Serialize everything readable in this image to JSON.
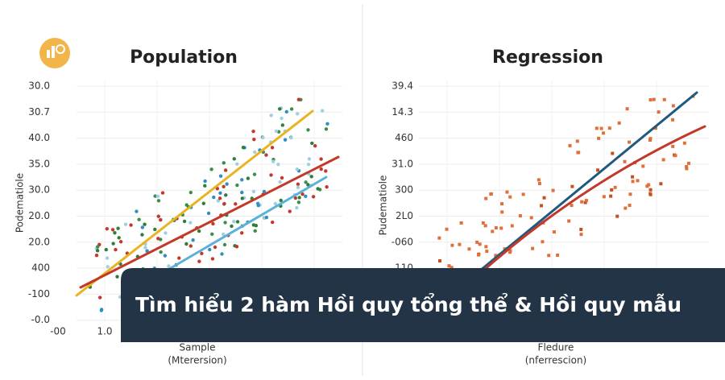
{
  "panels": [
    {
      "title": "Population",
      "y_axis_title": "Podematiole",
      "y_labels": [
        "30.0",
        "30.7",
        "40.0",
        "35.0",
        "30.0",
        "20.0",
        "20.0",
        "400",
        "-100",
        "-0.0"
      ],
      "x_labels": [
        "-00",
        "1.0"
      ],
      "x_axis_title": "Sample",
      "x_axis_subtitle": "(Mterersion)"
    },
    {
      "title": "Regression",
      "y_axis_title": "Pudematiole",
      "y_labels": [
        "39.4",
        "14.3",
        "460",
        "31.0",
        "300",
        "2L0",
        "-060",
        "110"
      ],
      "x_labels": [],
      "x_axis_title": "Fledure",
      "x_axis_subtitle": "(nferrescion)"
    }
  ],
  "banner": {
    "text": "Tìm hiểu 2 hàm Hồi quy tổng thể & Hồi quy mẫu"
  }
}
